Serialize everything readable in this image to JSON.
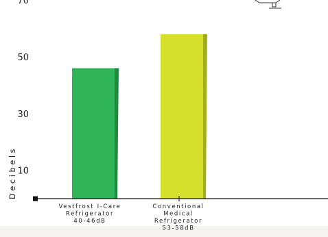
{
  "chart_data": {
    "type": "bar",
    "title": "",
    "xlabel": "",
    "ylabel": "Decibels",
    "ylim": [
      0,
      72
    ],
    "yticks": [
      10,
      30,
      50,
      70
    ],
    "categories": [
      [
        "Vestfrost I-Care",
        "Refrigerator",
        "40-46dB"
      ],
      [
        "Conventional",
        "Medical",
        "Refrigerator",
        "53-58dB"
      ]
    ],
    "values": [
      46,
      58
    ],
    "colors": [
      "#2fb458",
      "#d6df2b"
    ],
    "colors_side": [
      "#1f8a40",
      "#a5ad1a"
    ],
    "grid": false,
    "legend": "none"
  }
}
